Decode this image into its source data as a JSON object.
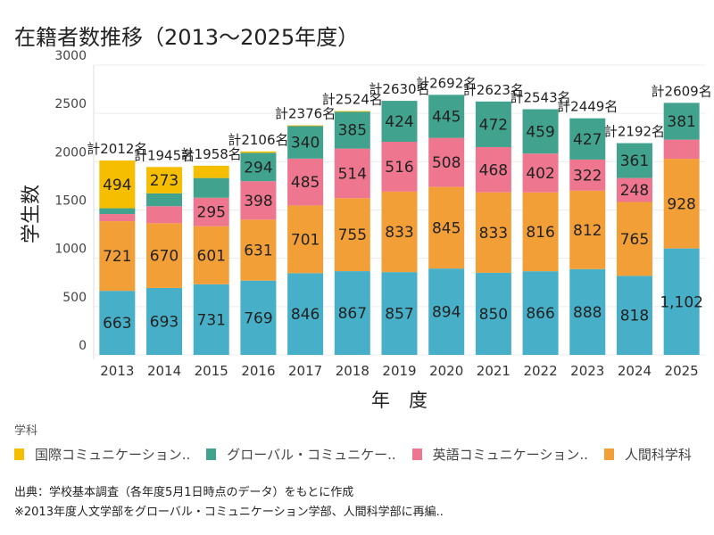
{
  "chart_data": {
    "type": "bar",
    "stacked": true,
    "title": "在籍者数推移（2013〜2025年度）",
    "xlabel": "年　度",
    "ylabel": "学生数",
    "ylim": [
      0,
      3000
    ],
    "yticks": [
      0,
      500,
      1000,
      1500,
      2000,
      2500,
      3000
    ],
    "grid": true,
    "categories": [
      "2013",
      "2014",
      "2015",
      "2016",
      "2017",
      "2018",
      "2019",
      "2020",
      "2021",
      "2022",
      "2023",
      "2024",
      "2025"
    ],
    "totals_labels": [
      "計2012名",
      "計1945名",
      "計1958名",
      "計2106名",
      "計2376名",
      "計2524名",
      "計2630名",
      "計2692名",
      "計2623名",
      "計2543名",
      "計2449名",
      "計2192名",
      "計2609名"
    ],
    "series": [
      {
        "name": "",
        "color": "#47AFC7",
        "values": [
          663,
          693,
          731,
          769,
          846,
          867,
          857,
          894,
          850,
          866,
          888,
          818,
          1102
        ],
        "labels": [
          "663",
          "693",
          "731",
          "769",
          "846",
          "867",
          "857",
          "894",
          "850",
          "866",
          "888",
          "818",
          "1,102"
        ]
      },
      {
        "name": "人間科学科",
        "color": "#F29F38",
        "values": [
          721,
          670,
          601,
          631,
          701,
          755,
          833,
          845,
          833,
          816,
          812,
          765,
          928
        ],
        "labels": [
          "721",
          "670",
          "601",
          "631",
          "701",
          "755",
          "833",
          "845",
          "833",
          "816",
          "812",
          "765",
          "928"
        ]
      },
      {
        "name": "英語コミュニケーション..",
        "color": "#EF768F",
        "values": [
          74,
          176,
          295,
          398,
          485,
          514,
          516,
          508,
          468,
          402,
          322,
          248,
          198
        ],
        "labels": [
          "",
          "",
          "295",
          "398",
          "485",
          "514",
          "516",
          "508",
          "468",
          "402",
          "322",
          "248",
          ""
        ]
      },
      {
        "name": "グローバル・コミュニケー..",
        "color": "#41A38D",
        "values": [
          60,
          133,
          204,
          294,
          340,
          385,
          424,
          445,
          472,
          459,
          427,
          361,
          381
        ],
        "labels": [
          "",
          "",
          "",
          "294",
          "340",
          "385",
          "424",
          "445",
          "472",
          "459",
          "427",
          "361",
          "381"
        ]
      },
      {
        "name": "国際コミュニケーション..",
        "color": "#F6BE00",
        "values": [
          494,
          273,
          127,
          14,
          4,
          3,
          0,
          0,
          0,
          0,
          0,
          0,
          0
        ],
        "labels": [
          "494",
          "273",
          "",
          "",
          "",
          "",
          "",
          "",
          "",
          "",
          "",
          "",
          ""
        ]
      }
    ],
    "legend_title": "学科",
    "legend_order": [
      4,
      3,
      2,
      1
    ],
    "legend_placement": "bottom"
  },
  "notes": [
    "出典：学校基本調査（各年度5月1日時点のデータ）をもとに作成",
    "※2013年度人文学部をグローバル・コミュニケーション学部、人間科学部に再編.."
  ]
}
